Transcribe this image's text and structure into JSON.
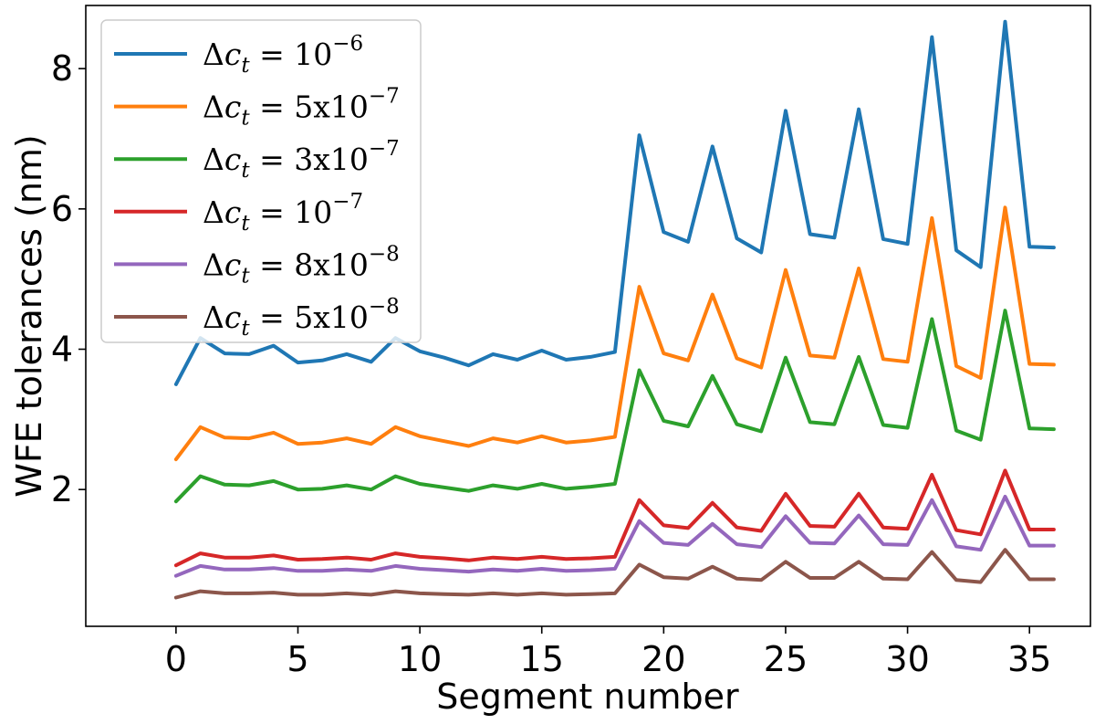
{
  "chart_data": {
    "type": "line",
    "title": "",
    "xlabel": "Segment number",
    "ylabel": "WFE tolerances (nm)",
    "xlim": [
      -3.7,
      37.5
    ],
    "ylim": [
      0.05,
      8.9
    ],
    "xticks": [
      0,
      5,
      10,
      15,
      20,
      25,
      30,
      35
    ],
    "yticks": [
      2,
      4,
      6,
      8
    ],
    "xtick_labels": [
      "0",
      "5",
      "10",
      "15",
      "20",
      "25",
      "30",
      "35"
    ],
    "ytick_labels": [
      "2",
      "4",
      "6",
      "8"
    ],
    "grid": false,
    "legend_position": "top-left",
    "x": [
      0,
      1,
      2,
      3,
      4,
      5,
      6,
      7,
      8,
      9,
      10,
      11,
      12,
      13,
      14,
      15,
      16,
      17,
      18,
      19,
      20,
      21,
      22,
      23,
      24,
      25,
      26,
      27,
      28,
      29,
      30,
      31,
      32,
      33,
      34,
      35,
      36
    ],
    "series": [
      {
        "name": "Δc_t = 10^-6",
        "label_prefix": "Δ",
        "label_var": "c",
        "label_sub": "t",
        "label_eq": " = ",
        "label_coef": "10",
        "label_exp": "−6",
        "color": "#1f77b4",
        "values": [
          3.5,
          4.16,
          3.94,
          3.93,
          4.05,
          3.81,
          3.84,
          3.93,
          3.82,
          4.16,
          3.97,
          3.88,
          3.77,
          3.93,
          3.85,
          3.98,
          3.85,
          3.89,
          3.96,
          7.05,
          5.67,
          5.53,
          6.89,
          5.58,
          5.38,
          7.4,
          5.64,
          5.59,
          7.42,
          5.57,
          5.5,
          8.45,
          5.41,
          5.17,
          8.67,
          5.46,
          5.45
        ]
      },
      {
        "name": "Δc_t = 5x10^-7",
        "label_prefix": "Δ",
        "label_var": "c",
        "label_sub": "t",
        "label_eq": " = ",
        "label_coef": "5x10",
        "label_exp": "−7",
        "color": "#ff7f0e",
        "values": [
          2.43,
          2.89,
          2.74,
          2.73,
          2.81,
          2.65,
          2.67,
          2.73,
          2.65,
          2.89,
          2.76,
          2.69,
          2.62,
          2.73,
          2.67,
          2.76,
          2.67,
          2.7,
          2.75,
          4.89,
          3.94,
          3.84,
          4.78,
          3.87,
          3.74,
          5.13,
          3.91,
          3.88,
          5.15,
          3.86,
          3.82,
          5.87,
          3.76,
          3.59,
          6.02,
          3.79,
          3.78
        ]
      },
      {
        "name": "Δc_t = 3x10^-7",
        "label_prefix": "Δ",
        "label_var": "c",
        "label_sub": "t",
        "label_eq": " = ",
        "label_coef": "3x10",
        "label_exp": "−7",
        "color": "#2ca02c",
        "values": [
          1.83,
          2.19,
          2.07,
          2.06,
          2.12,
          2.0,
          2.01,
          2.06,
          2.0,
          2.19,
          2.08,
          2.03,
          1.98,
          2.06,
          2.01,
          2.08,
          2.01,
          2.04,
          2.08,
          3.7,
          2.98,
          2.9,
          3.62,
          2.93,
          2.83,
          3.88,
          2.96,
          2.93,
          3.89,
          2.92,
          2.88,
          4.43,
          2.84,
          2.71,
          4.55,
          2.87,
          2.86
        ]
      },
      {
        "name": "Δc_t = 10^-7",
        "label_prefix": "Δ",
        "label_var": "c",
        "label_sub": "t",
        "label_eq": " = ",
        "label_coef": "10",
        "label_exp": "−7",
        "color": "#d62728",
        "values": [
          0.92,
          1.09,
          1.03,
          1.03,
          1.06,
          1.0,
          1.01,
          1.03,
          1.0,
          1.09,
          1.04,
          1.02,
          0.99,
          1.03,
          1.01,
          1.04,
          1.01,
          1.02,
          1.04,
          1.85,
          1.49,
          1.45,
          1.81,
          1.46,
          1.41,
          1.94,
          1.48,
          1.47,
          1.94,
          1.46,
          1.44,
          2.21,
          1.42,
          1.36,
          2.27,
          1.43,
          1.43
        ]
      },
      {
        "name": "Δc_t = 8x10^-8",
        "label_prefix": "Δ",
        "label_var": "c",
        "label_sub": "t",
        "label_eq": " = ",
        "label_coef": "8x10",
        "label_exp": "−8",
        "color": "#9467bd",
        "values": [
          0.77,
          0.91,
          0.86,
          0.86,
          0.88,
          0.84,
          0.84,
          0.86,
          0.84,
          0.91,
          0.87,
          0.85,
          0.83,
          0.86,
          0.84,
          0.87,
          0.84,
          0.85,
          0.87,
          1.55,
          1.24,
          1.21,
          1.51,
          1.22,
          1.18,
          1.62,
          1.24,
          1.23,
          1.63,
          1.22,
          1.21,
          1.85,
          1.19,
          1.14,
          1.9,
          1.2,
          1.2
        ]
      },
      {
        "name": "Δc_t = 5x10^-8",
        "label_prefix": "Δ",
        "label_var": "c",
        "label_sub": "t",
        "label_eq": " = ",
        "label_coef": "5x10",
        "label_exp": "−8",
        "color": "#8c564b",
        "values": [
          0.46,
          0.55,
          0.52,
          0.52,
          0.53,
          0.5,
          0.5,
          0.52,
          0.5,
          0.55,
          0.52,
          0.51,
          0.5,
          0.52,
          0.5,
          0.52,
          0.5,
          0.51,
          0.52,
          0.93,
          0.75,
          0.73,
          0.9,
          0.73,
          0.71,
          0.97,
          0.74,
          0.74,
          0.97,
          0.73,
          0.72,
          1.11,
          0.71,
          0.68,
          1.14,
          0.72,
          0.72
        ]
      }
    ]
  }
}
